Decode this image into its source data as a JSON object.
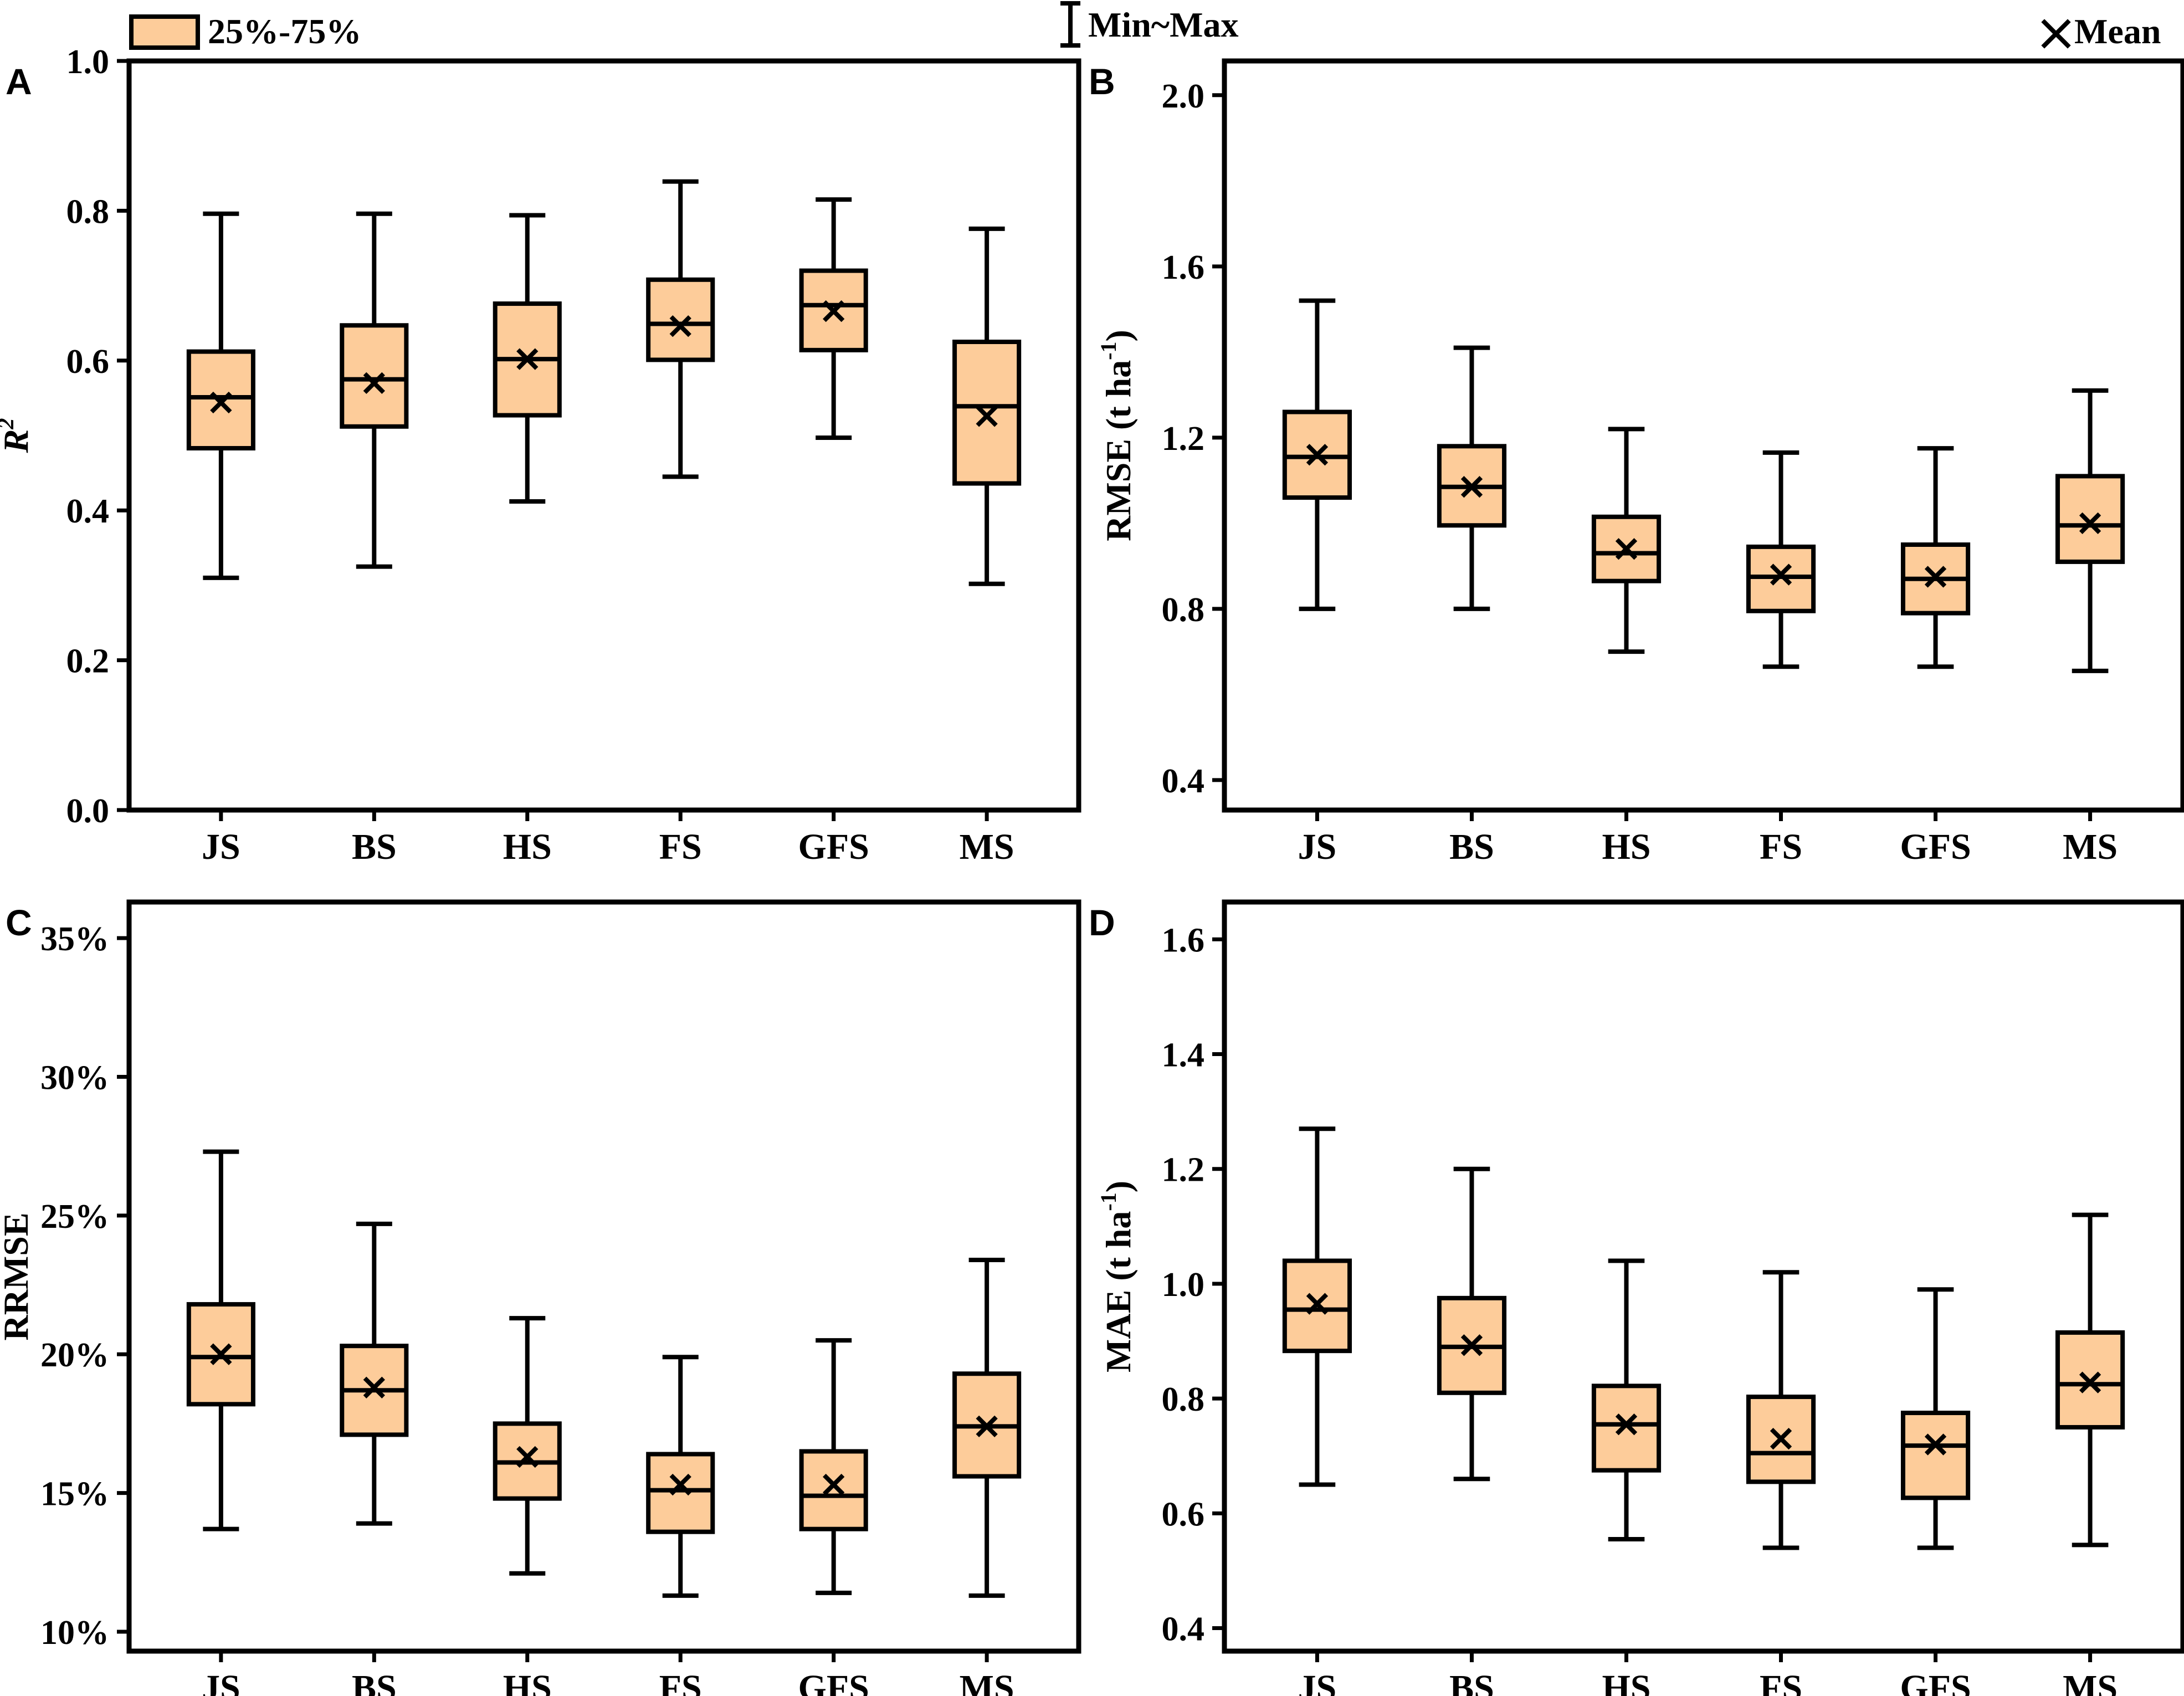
{
  "colors": {
    "box_fill": "#fdcc9a",
    "stroke": "#000000",
    "background": "#ffffff"
  },
  "legend": {
    "box_label": "25%-75%",
    "whisker_label": "Min~Max",
    "mean_label": "Mean",
    "mean_icon": "x-mark-icon",
    "whisker_icon": "range-bar-icon"
  },
  "chart_data": [
    {
      "panel": "A",
      "type": "box",
      "ylabel_main": "R",
      "ylabel_sup": "2",
      "ylabel_rest": "",
      "categories": [
        "JS",
        "BS",
        "HS",
        "FS",
        "GFS",
        "MS"
      ],
      "ylim": [
        0.0,
        1.0
      ],
      "yticks": [
        0.0,
        0.2,
        0.4,
        0.6,
        0.8,
        1.0
      ],
      "ytick_labels": [
        "0.0",
        "0.2",
        "0.4",
        "0.6",
        "0.8",
        "1.0"
      ],
      "series": [
        {
          "name": "JS",
          "min": 0.31,
          "q1": 0.483,
          "median": 0.551,
          "q3": 0.612,
          "max": 0.796,
          "mean": 0.544
        },
        {
          "name": "BS",
          "min": 0.325,
          "q1": 0.512,
          "median": 0.575,
          "q3": 0.647,
          "max": 0.796,
          "mean": 0.57
        },
        {
          "name": "HS",
          "min": 0.412,
          "q1": 0.527,
          "median": 0.602,
          "q3": 0.676,
          "max": 0.794,
          "mean": 0.602
        },
        {
          "name": "FS",
          "min": 0.445,
          "q1": 0.601,
          "median": 0.649,
          "q3": 0.708,
          "max": 0.839,
          "mean": 0.646
        },
        {
          "name": "GFS",
          "min": 0.497,
          "q1": 0.614,
          "median": 0.674,
          "q3": 0.72,
          "max": 0.815,
          "mean": 0.666
        },
        {
          "name": "MS",
          "min": 0.302,
          "q1": 0.436,
          "median": 0.539,
          "q3": 0.625,
          "max": 0.776,
          "mean": 0.526
        }
      ]
    },
    {
      "panel": "B",
      "type": "box",
      "ylabel_main": "RMSE (t ha",
      "ylabel_sup": "-1",
      "ylabel_rest": ")",
      "categories": [
        "JS",
        "BS",
        "HS",
        "FS",
        "GFS",
        "MS"
      ],
      "ylim": [
        0.33,
        2.08
      ],
      "yticks": [
        0.4,
        0.8,
        1.2,
        1.6,
        2.0
      ],
      "ytick_labels": [
        "0.4",
        "0.8",
        "1.2",
        "1.6",
        "2.0"
      ],
      "series": [
        {
          "name": "JS",
          "min": 0.8,
          "q1": 1.06,
          "median": 1.155,
          "q3": 1.26,
          "max": 1.52,
          "mean": 1.16
        },
        {
          "name": "BS",
          "min": 0.8,
          "q1": 0.995,
          "median": 1.085,
          "q3": 1.18,
          "max": 1.41,
          "mean": 1.085
        },
        {
          "name": "HS",
          "min": 0.7,
          "q1": 0.865,
          "median": 0.93,
          "q3": 1.015,
          "max": 1.22,
          "mean": 0.94
        },
        {
          "name": "FS",
          "min": 0.665,
          "q1": 0.795,
          "median": 0.875,
          "q3": 0.945,
          "max": 1.165,
          "mean": 0.88
        },
        {
          "name": "GFS",
          "min": 0.665,
          "q1": 0.79,
          "median": 0.87,
          "q3": 0.95,
          "max": 1.175,
          "mean": 0.875
        },
        {
          "name": "MS",
          "min": 0.655,
          "q1": 0.91,
          "median": 0.995,
          "q3": 1.11,
          "max": 1.31,
          "mean": 1.0
        }
      ]
    },
    {
      "panel": "C",
      "type": "box",
      "ylabel_main": "RRMSE",
      "ylabel_sup": "",
      "ylabel_rest": "",
      "categories": [
        "JS",
        "BS",
        "HS",
        "FS",
        "GFS",
        "MS"
      ],
      "ylim": [
        9.3,
        36.3
      ],
      "yticks": [
        10,
        15,
        20,
        25,
        30,
        35
      ],
      "ytick_labels": [
        "10%",
        "15%",
        "20%",
        "25%",
        "30%",
        "35%"
      ],
      "series": [
        {
          "name": "JS",
          "min": 13.7,
          "q1": 18.2,
          "median": 19.9,
          "q3": 21.8,
          "max": 27.3,
          "mean": 20.0
        },
        {
          "name": "BS",
          "min": 13.9,
          "q1": 17.1,
          "median": 18.7,
          "q3": 20.3,
          "max": 24.7,
          "mean": 18.8
        },
        {
          "name": "HS",
          "min": 12.1,
          "q1": 14.8,
          "median": 16.1,
          "q3": 17.5,
          "max": 21.3,
          "mean": 16.3
        },
        {
          "name": "FS",
          "min": 11.3,
          "q1": 13.6,
          "median": 15.1,
          "q3": 16.4,
          "max": 19.9,
          "mean": 15.3
        },
        {
          "name": "GFS",
          "min": 11.4,
          "q1": 13.7,
          "median": 14.9,
          "q3": 16.5,
          "max": 20.5,
          "mean": 15.3
        },
        {
          "name": "MS",
          "min": 11.3,
          "q1": 15.6,
          "median": 17.4,
          "q3": 19.3,
          "max": 23.4,
          "mean": 17.4
        }
      ]
    },
    {
      "panel": "D",
      "type": "box",
      "ylabel_main": "MAE (t ha",
      "ylabel_sup": "-1",
      "ylabel_rest": ")",
      "categories": [
        "JS",
        "BS",
        "HS",
        "FS",
        "GFS",
        "MS"
      ],
      "ylim": [
        0.36,
        1.665
      ],
      "yticks": [
        0.4,
        0.6,
        0.8,
        1.0,
        1.2,
        1.4,
        1.6
      ],
      "ytick_labels": [
        "0.4",
        "0.6",
        "0.8",
        "1.0",
        "1.2",
        "1.4",
        "1.6"
      ],
      "series": [
        {
          "name": "JS",
          "min": 0.65,
          "q1": 0.883,
          "median": 0.955,
          "q3": 1.04,
          "max": 1.27,
          "mean": 0.965
        },
        {
          "name": "BS",
          "min": 0.66,
          "q1": 0.81,
          "median": 0.89,
          "q3": 0.975,
          "max": 1.2,
          "mean": 0.893
        },
        {
          "name": "HS",
          "min": 0.555,
          "q1": 0.675,
          "median": 0.755,
          "q3": 0.822,
          "max": 1.04,
          "mean": 0.755
        },
        {
          "name": "FS",
          "min": 0.54,
          "q1": 0.655,
          "median": 0.705,
          "q3": 0.803,
          "max": 1.02,
          "mean": 0.73
        },
        {
          "name": "GFS",
          "min": 0.54,
          "q1": 0.627,
          "median": 0.718,
          "q3": 0.775,
          "max": 0.99,
          "mean": 0.72
        },
        {
          "name": "MS",
          "min": 0.545,
          "q1": 0.75,
          "median": 0.825,
          "q3": 0.915,
          "max": 1.12,
          "mean": 0.828
        }
      ]
    }
  ]
}
